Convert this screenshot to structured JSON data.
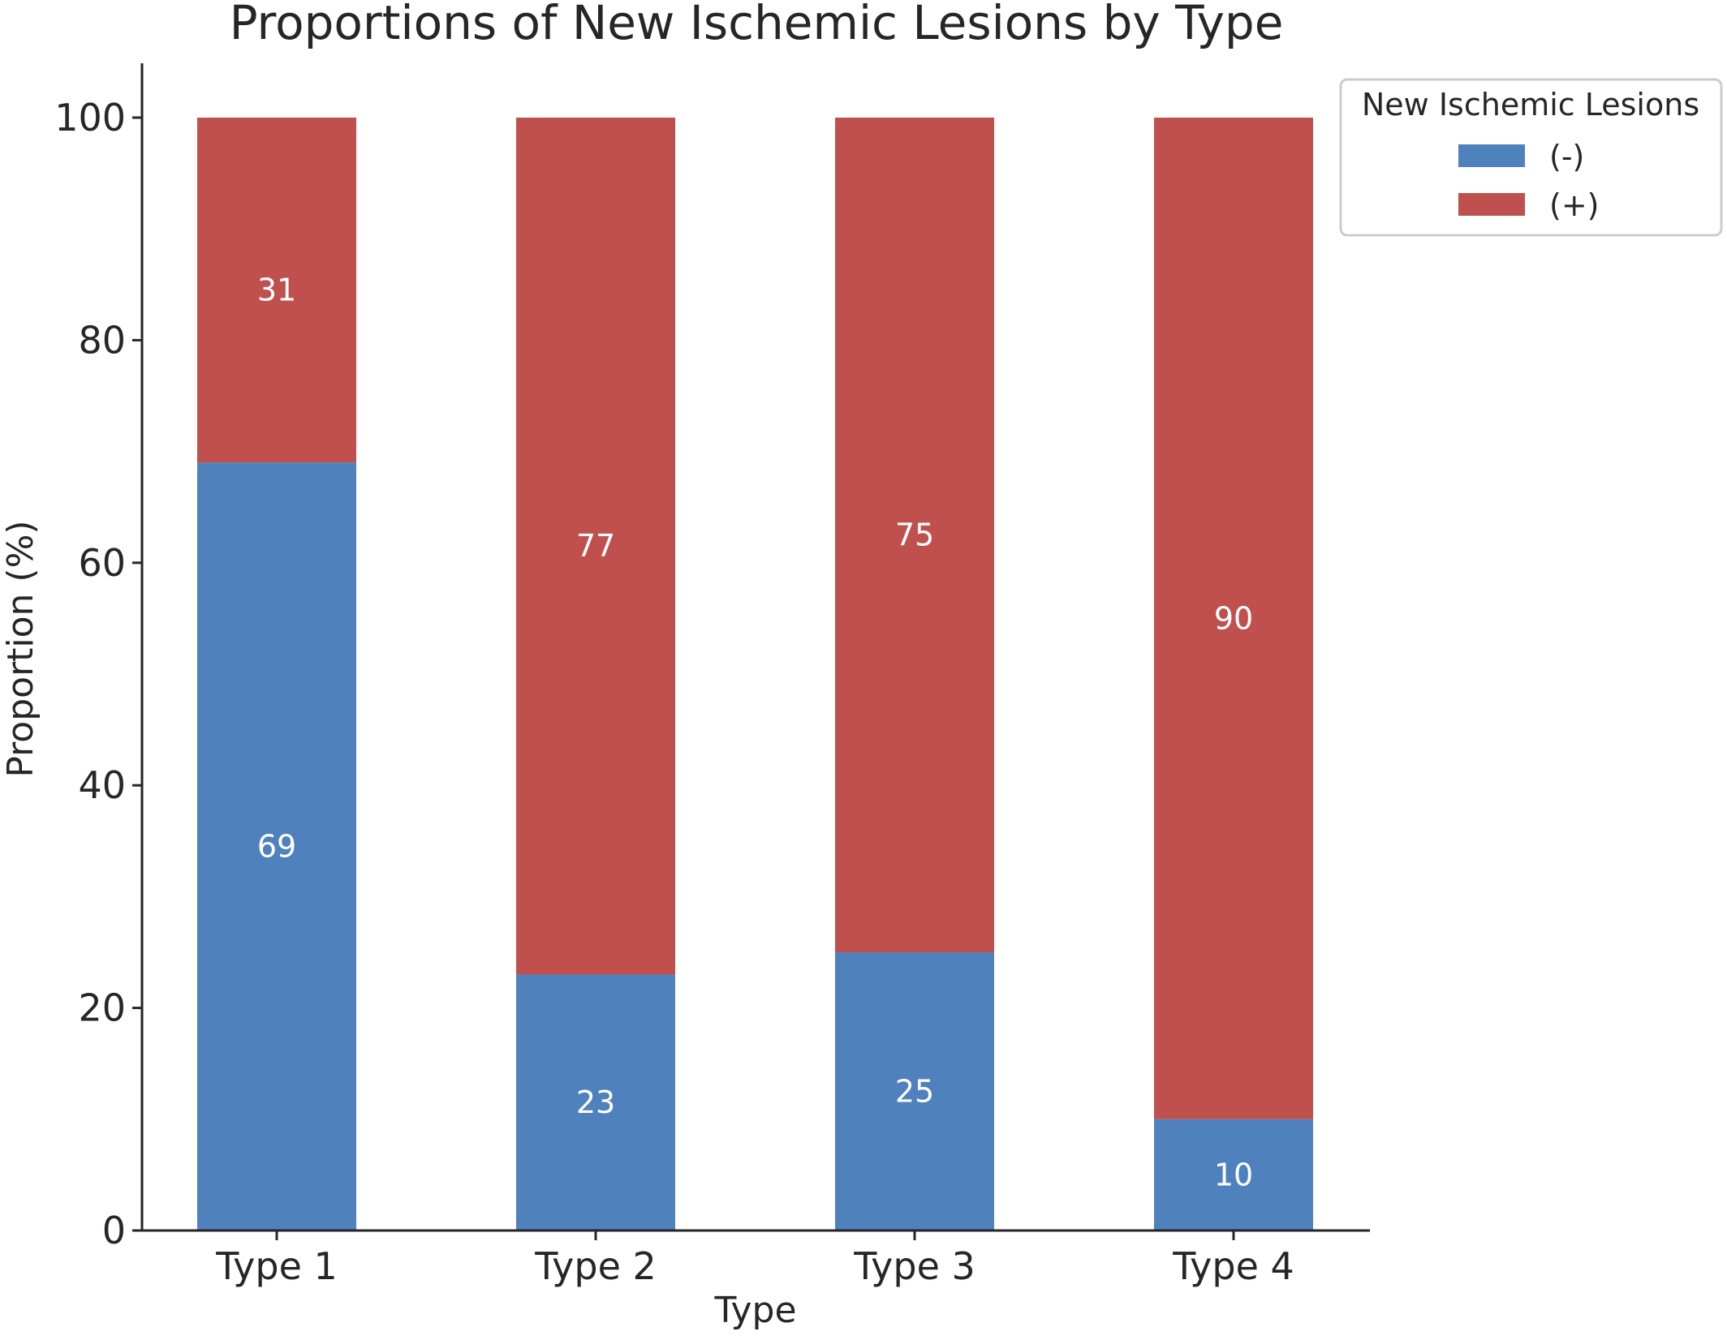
{
  "chart_data": {
    "type": "bar",
    "stacked": true,
    "title": "Proportions of New Ischemic Lesions by Type",
    "xlabel": "Type",
    "ylabel": "Proportion (%)",
    "categories": [
      "Type 1",
      "Type 2",
      "Type 3",
      "Type 4"
    ],
    "ylim": [
      0,
      105
    ],
    "yticks": [
      0,
      20,
      40,
      60,
      80,
      100
    ],
    "grid": false,
    "legend": {
      "title": "New Ischemic Lesions",
      "position": "outside-top-right"
    },
    "series": [
      {
        "name": "(-)",
        "color": "#4f81bd",
        "values": [
          69,
          23,
          25,
          10
        ],
        "labels": [
          "69",
          "23",
          "25",
          "10"
        ]
      },
      {
        "name": "(+)",
        "color": "#c0504d",
        "values": [
          31,
          77,
          75,
          90
        ],
        "labels": [
          "31",
          "77",
          "75",
          "90"
        ]
      }
    ]
  }
}
